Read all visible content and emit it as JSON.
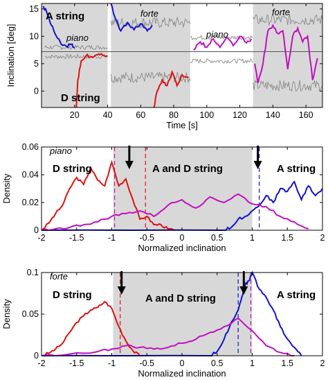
{
  "colors": {
    "A": "#1010d0",
    "D": "#e01010",
    "mix": "#c010c0",
    "gray": "#888888",
    "shade": "#d8d8d8"
  },
  "chart_data": [
    {
      "id": "top",
      "type": "line",
      "xlabel": "Time [s]",
      "ylabel": "Inclination [deg]",
      "xlim": [
        0,
        170
      ],
      "ylim": [
        -3,
        16
      ],
      "xticks": [
        "20",
        "40",
        "60",
        "80",
        "100",
        "120",
        "140",
        "160"
      ],
      "yticks": [
        "0",
        "5",
        "10",
        "15"
      ],
      "annotations": {
        "a_string": "A string",
        "d_string": "D string",
        "piano1": "piano",
        "forte1": "forte",
        "piano2": "piano",
        "forte2": "forte"
      },
      "shaded_x_ranges": [
        [
          0,
          40
        ],
        [
          42,
          90
        ],
        [
          128,
          170
        ]
      ],
      "series": [
        {
          "key": "A",
          "x": [
            1,
            3,
            6,
            9,
            12,
            15,
            18,
            20
          ],
          "y": [
            15.5,
            14.5,
            12,
            10,
            8.5,
            8.2,
            8.5,
            8
          ]
        },
        {
          "key": "D",
          "x": [
            21,
            22,
            24,
            27,
            30,
            33,
            36,
            40
          ],
          "y": [
            -3,
            2,
            5.5,
            6.5,
            6.3,
            6.6,
            6.8,
            6.4
          ]
        },
        {
          "key": "A",
          "x": [
            42,
            45,
            48,
            52,
            56,
            60,
            64,
            67
          ],
          "y": [
            16,
            13,
            11,
            12.5,
            11.2,
            12.3,
            11,
            12
          ]
        },
        {
          "key": "D",
          "x": [
            68,
            70,
            73,
            76,
            79,
            82,
            85,
            89
          ],
          "y": [
            -3,
            0,
            2,
            1,
            3.5,
            1,
            3,
            2.5
          ]
        },
        {
          "key": "mix",
          "x": [
            92,
            96,
            100,
            104,
            108,
            112,
            116,
            120,
            124,
            127
          ],
          "y": [
            7.5,
            9,
            8,
            9.5,
            8,
            9.8,
            8.3,
            10,
            8.8,
            9.5
          ]
        },
        {
          "key": "mix",
          "x": [
            129,
            131,
            134,
            137,
            140,
            143,
            146,
            149,
            152,
            155,
            158,
            161,
            164,
            167
          ],
          "y": [
            5,
            1.5,
            5,
            11,
            12,
            10.5,
            11,
            4,
            10,
            11.5,
            9,
            10,
            2,
            6
          ]
        }
      ]
    },
    {
      "id": "piano",
      "type": "line",
      "xlabel": "Normalized inclination",
      "ylabel": "Density",
      "xlim": [
        -2,
        2
      ],
      "ylim": [
        0,
        0.06
      ],
      "xticks": [
        "-2",
        "-1.5",
        "-1",
        "-0.5",
        "0",
        "0.5",
        "1",
        "1.5",
        "2"
      ],
      "yticks": [
        "0",
        "0.02",
        "0.04",
        "0.06"
      ],
      "panel_label": "piano",
      "annotations": {
        "d_string": "D string",
        "ad_string": "A and D string",
        "a_string": "A string"
      },
      "shaded_x_range": [
        -0.98,
        1.0
      ],
      "arrows_x": [
        -0.75,
        1.08
      ],
      "dashed_lines": [
        {
          "key": "D",
          "x": -0.52
        },
        {
          "key": "A",
          "x": 1.1
        },
        {
          "key": "mix",
          "x": -0.96
        }
      ],
      "series": [
        {
          "key": "D",
          "x": [
            -2,
            -1.9,
            -1.8,
            -1.7,
            -1.6,
            -1.5,
            -1.4,
            -1.3,
            -1.2,
            -1.1,
            -1.0,
            -0.9,
            -0.8,
            -0.7,
            -0.6,
            -0.5,
            -0.4,
            -0.3,
            -0.2,
            -0.1
          ],
          "y": [
            0.0,
            0.005,
            0.012,
            0.018,
            0.03,
            0.038,
            0.033,
            0.045,
            0.036,
            0.032,
            0.049,
            0.032,
            0.037,
            0.022,
            0.008,
            0.01,
            0.004,
            0.004,
            0.001,
            0.0
          ]
        },
        {
          "key": "A",
          "x": [
            -2,
            0.6,
            0.7,
            0.8,
            0.9,
            1.0,
            1.1,
            1.2,
            1.3,
            1.4,
            1.5,
            1.6,
            1.7,
            1.8,
            1.9,
            2.0
          ],
          "y": [
            0.0,
            0.0,
            0.002,
            0.008,
            0.01,
            0.014,
            0.018,
            0.025,
            0.02,
            0.03,
            0.028,
            0.035,
            0.022,
            0.032,
            0.025,
            0.03
          ]
        },
        {
          "key": "mix",
          "x": [
            -2,
            -1.8,
            -1.6,
            -1.4,
            -1.2,
            -1.0,
            -0.8,
            -0.6,
            -0.4,
            -0.2,
            0.0,
            0.2,
            0.4,
            0.6,
            0.8,
            1.0,
            1.2,
            1.4,
            1.6,
            1.8
          ],
          "y": [
            0.0,
            0.001,
            0.002,
            0.004,
            0.006,
            0.01,
            0.012,
            0.014,
            0.01,
            0.018,
            0.022,
            0.016,
            0.024,
            0.02,
            0.026,
            0.019,
            0.017,
            0.01,
            0.006,
            0.001
          ]
        }
      ]
    },
    {
      "id": "forte",
      "type": "line",
      "xlabel": "Normalized inclination",
      "ylabel": "Density",
      "xlim": [
        -2,
        2
      ],
      "ylim": [
        0,
        0.1
      ],
      "xticks": [
        "-2",
        "-1.5",
        "-1",
        "-0.5",
        "0",
        "0.5",
        "1",
        "1.5",
        "2"
      ],
      "yticks": [
        "0",
        "0.05",
        "0.1"
      ],
      "panel_label": "forte",
      "annotations": {
        "d_string": "D string",
        "ad_string": "A and D string",
        "a_string": "A string"
      },
      "shaded_x_range": [
        -0.98,
        1.0
      ],
      "arrows_x": [
        -0.86,
        0.88
      ],
      "dashed_lines": [
        {
          "key": "D",
          "x": -0.88
        },
        {
          "key": "A",
          "x": 0.8
        },
        {
          "key": "mix",
          "x": 0.98
        }
      ],
      "series": [
        {
          "key": "D",
          "x": [
            -2,
            -1.9,
            -1.8,
            -1.7,
            -1.6,
            -1.5,
            -1.4,
            -1.3,
            -1.2,
            -1.1,
            -1.0,
            -0.9,
            -0.8,
            -0.7,
            -0.6
          ],
          "y": [
            0.0,
            0.003,
            0.008,
            0.015,
            0.028,
            0.04,
            0.048,
            0.055,
            0.058,
            0.065,
            0.057,
            0.035,
            0.018,
            0.006,
            0.0
          ]
        },
        {
          "key": "A",
          "x": [
            -2,
            0.4,
            0.5,
            0.6,
            0.7,
            0.8,
            0.85,
            0.9,
            0.95,
            1.0,
            1.1,
            1.2,
            1.3,
            1.4,
            1.5,
            1.6,
            1.7
          ],
          "y": [
            0.0,
            0.0,
            0.005,
            0.02,
            0.04,
            0.055,
            0.07,
            0.085,
            0.09,
            0.1,
            0.08,
            0.07,
            0.055,
            0.035,
            0.02,
            0.01,
            0.0
          ]
        },
        {
          "key": "mix",
          "x": [
            -2,
            -1.6,
            -1.2,
            -1.0,
            -0.8,
            -0.6,
            -0.4,
            -0.2,
            0.0,
            0.2,
            0.4,
            0.6,
            0.8,
            1.0,
            1.2,
            1.4,
            1.6
          ],
          "y": [
            0.0,
            0.002,
            0.005,
            0.008,
            0.012,
            0.01,
            0.008,
            0.01,
            0.015,
            0.02,
            0.028,
            0.035,
            0.045,
            0.03,
            0.012,
            0.004,
            0.0
          ]
        }
      ]
    }
  ]
}
